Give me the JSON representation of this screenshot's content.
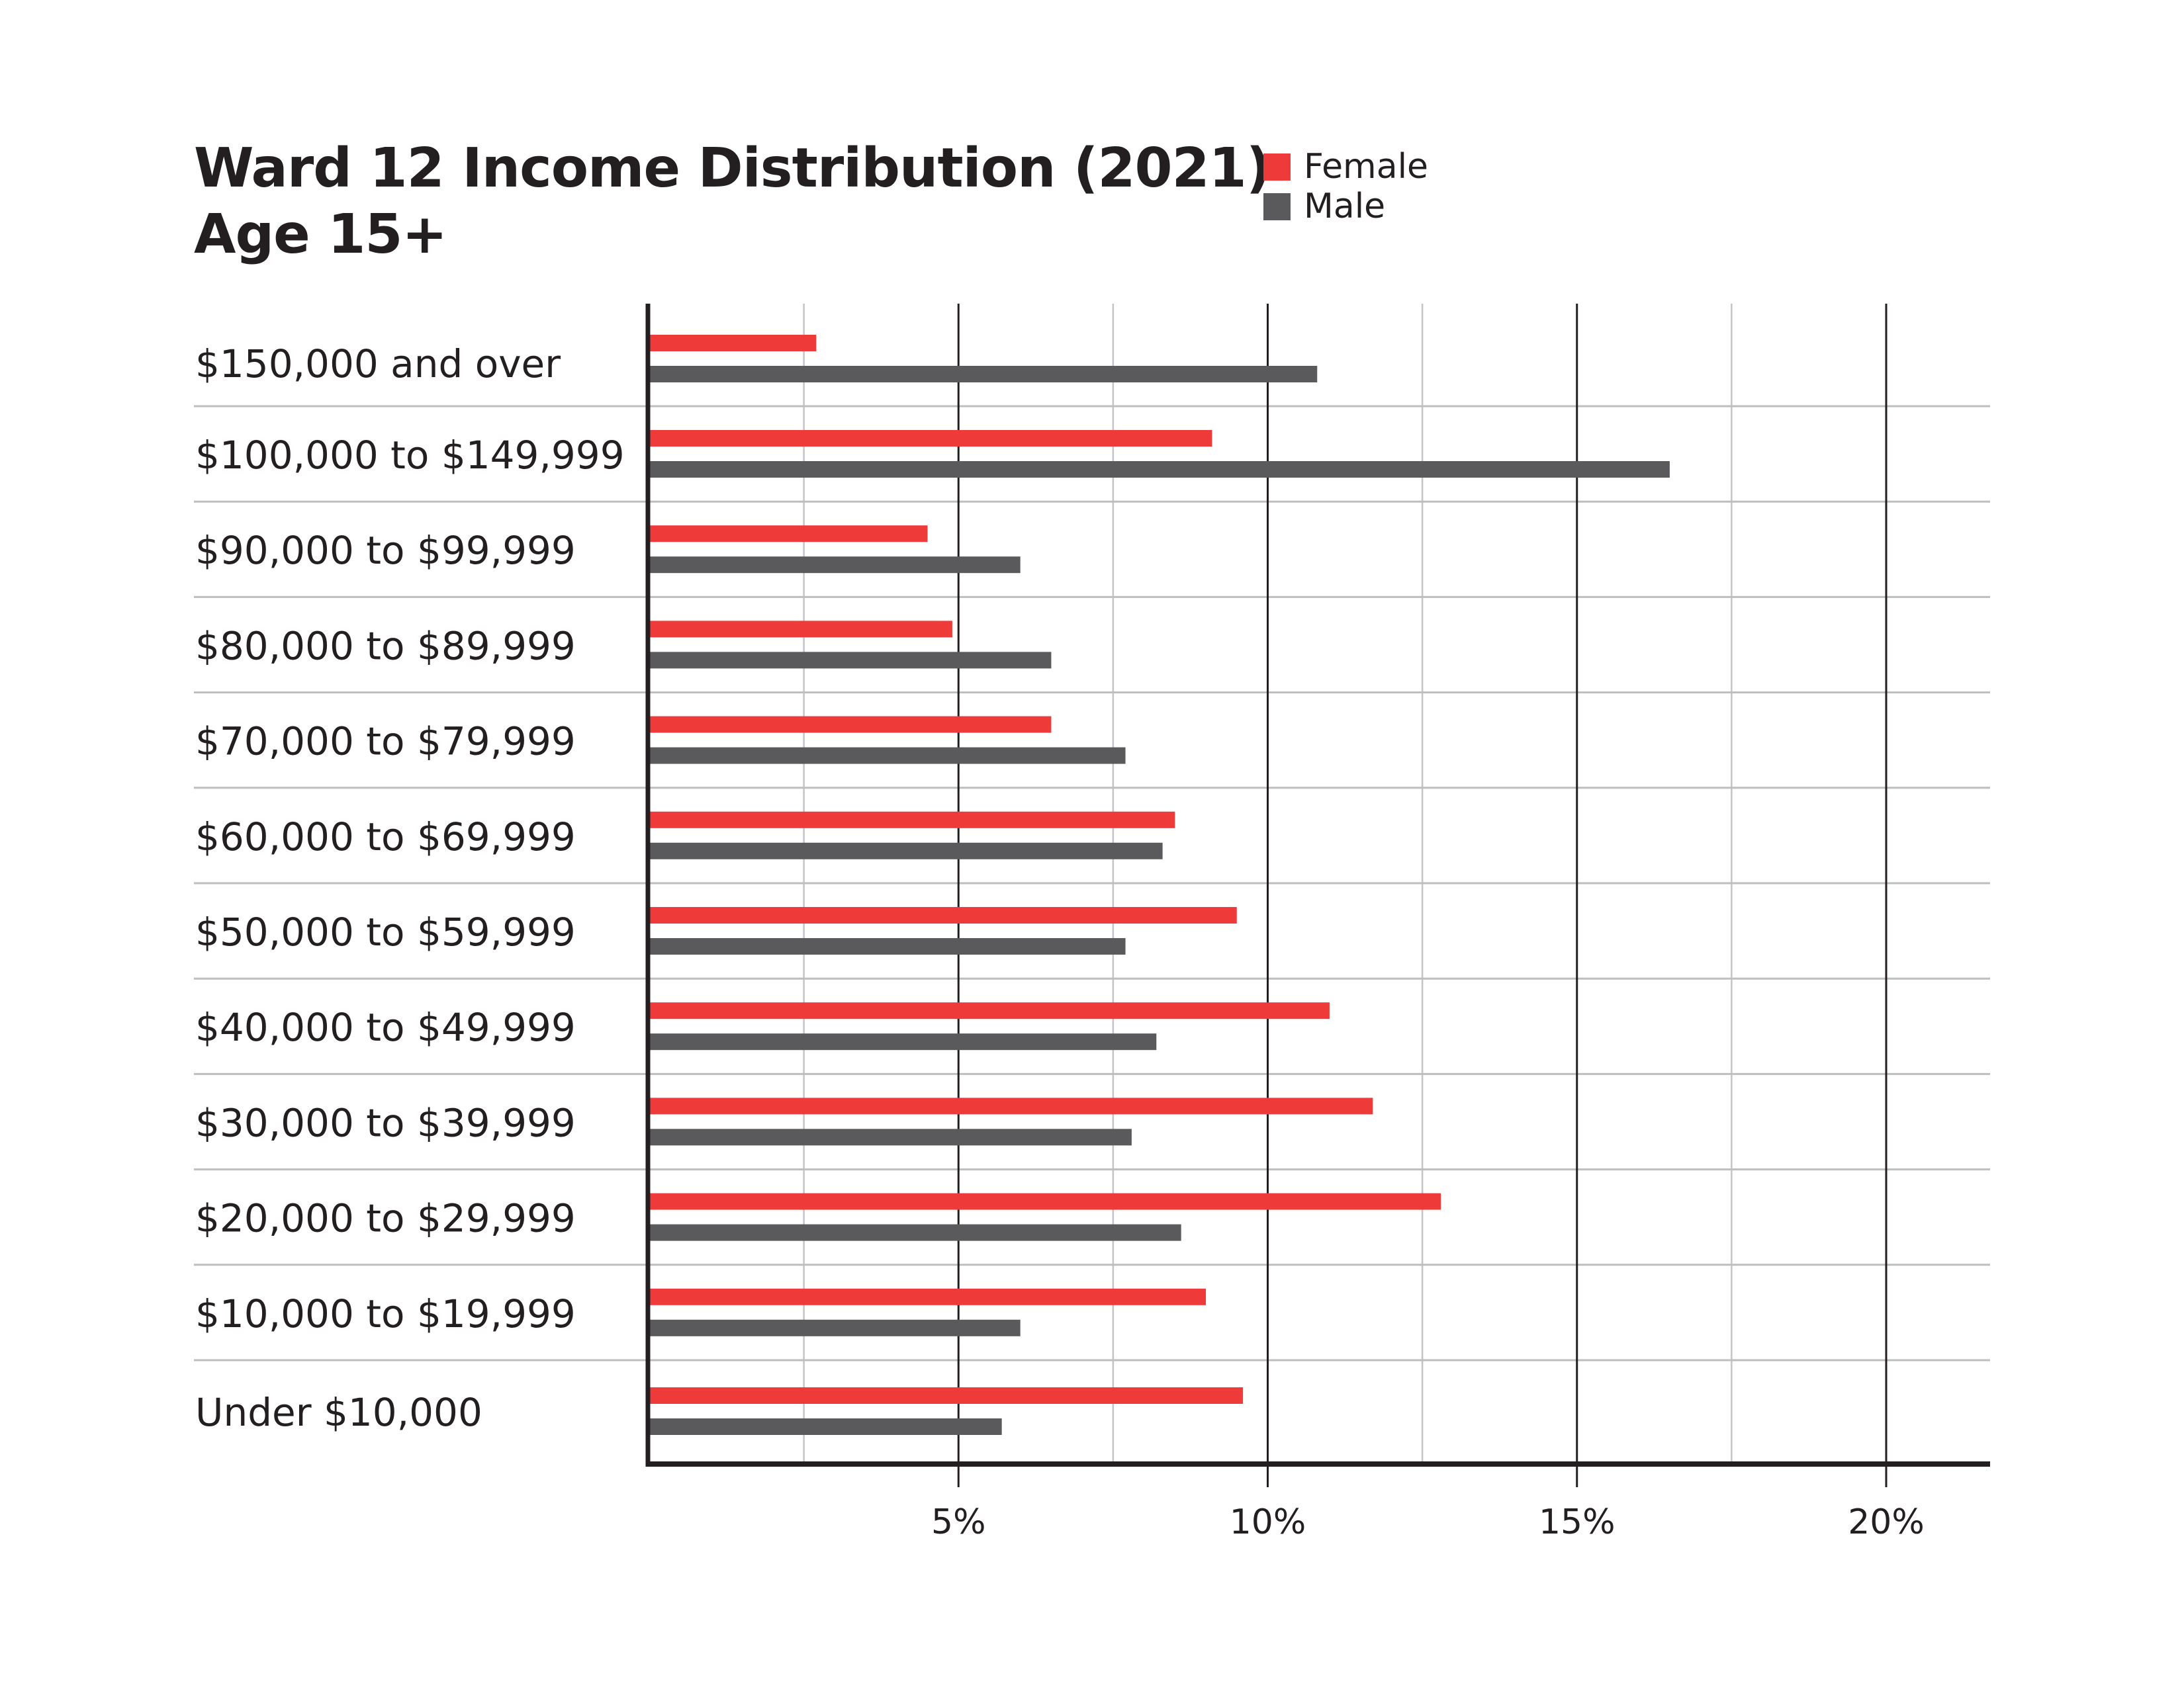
{
  "title": {
    "line1": "Ward 12 Income Distribution (2021)",
    "line2": "Age 15+"
  },
  "legend": [
    {
      "label": "Female",
      "color": "#ef3a3a"
    },
    {
      "label": "Male",
      "color": "#5a5a5c"
    }
  ],
  "chart_data": {
    "type": "bar",
    "orientation": "horizontal",
    "title": "Ward 12 Income Distribution (2021) Age 15+",
    "xlabel": "",
    "ylabel": "",
    "categories": [
      "$150,000 and over",
      "$100,000 to $149,999",
      "$90,000 to $99,999",
      "$80,000 to $89,999",
      "$70,000 to $79,999",
      "$60,000 to $69,999",
      "$50,000 to $59,999",
      "$40,000 to $49,999",
      "$30,000 to $39,999",
      "$20,000 to $29,999",
      "$10,000 to $19,999",
      "Under $10,000"
    ],
    "series": [
      {
        "name": "Female",
        "color": "#ef3a3a",
        "values": [
          2.7,
          9.1,
          4.5,
          4.9,
          6.5,
          8.5,
          9.5,
          11.0,
          11.7,
          12.8,
          9.0,
          9.6
        ]
      },
      {
        "name": "Male",
        "color": "#5a5a5c",
        "values": [
          10.8,
          16.5,
          6.0,
          6.5,
          7.7,
          8.3,
          7.7,
          8.2,
          7.8,
          8.6,
          6.0,
          5.7
        ]
      }
    ],
    "x_unit": "%",
    "xlim": [
      0,
      21.7
    ],
    "xticks": [
      5,
      10,
      15,
      20
    ],
    "xtick_labels": [
      "5%",
      "10%",
      "15%",
      "20%"
    ],
    "minor_gridlines": [
      2.5,
      7.5,
      12.5,
      17.5
    ],
    "grid": true,
    "legend_position": "top-center"
  }
}
